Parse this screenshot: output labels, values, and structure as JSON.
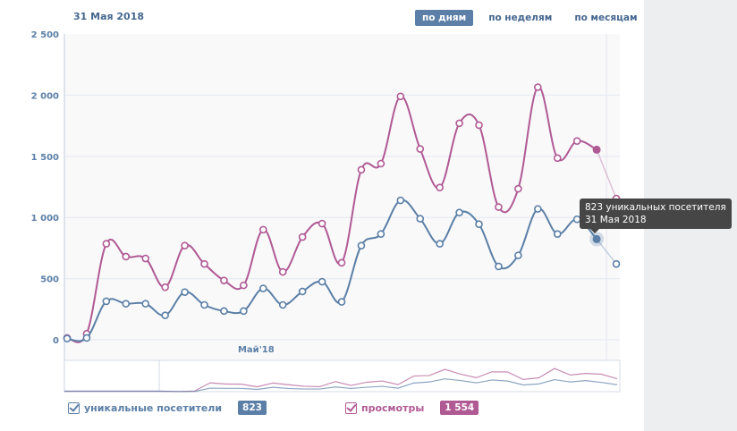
{
  "header": {
    "date_title": "31 Мая 2018"
  },
  "period_tabs": [
    {
      "label": "по дням",
      "active": true
    },
    {
      "label": "по неделям",
      "active": false
    },
    {
      "label": "по месяцам",
      "active": false
    }
  ],
  "colors": {
    "visitors": "#5b7fa6",
    "views": "#b05a94",
    "text": "#45678f",
    "grid": "#e3e8f0",
    "plot_bg": "#f9f9fa"
  },
  "chart_data": {
    "type": "line",
    "title": "31 Мая 2018",
    "xlabel": "",
    "ylabel": "",
    "ylim": [
      0,
      2500
    ],
    "yticks": [
      0,
      500,
      1000,
      1500,
      2000,
      2500
    ],
    "ytick_labels": [
      "0",
      "500",
      "1 000",
      "1 500",
      "2 000",
      "2 500"
    ],
    "xtick_labels": [
      {
        "index": 9.5,
        "label": "Май'18"
      }
    ],
    "grid": true,
    "highlight_index": 27,
    "series": [
      {
        "name": "просмотры",
        "color": "#b05a94",
        "values": [
          15,
          50,
          785,
          680,
          665,
          430,
          770,
          620,
          485,
          445,
          900,
          555,
          840,
          950,
          630,
          1390,
          1440,
          1990,
          1560,
          1245,
          1770,
          1755,
          1085,
          1235,
          2065,
          1485,
          1625,
          1554,
          1155
        ]
      },
      {
        "name": "уникальные посетители",
        "color": "#5b7fa6",
        "values": [
          10,
          15,
          315,
          295,
          295,
          200,
          390,
          285,
          235,
          235,
          420,
          285,
          395,
          475,
          310,
          770,
          865,
          1140,
          990,
          785,
          1040,
          945,
          600,
          690,
          1070,
          865,
          985,
          823,
          620
        ]
      }
    ],
    "legend": "bottom-left"
  },
  "legend": {
    "visitors": {
      "label": "уникальные посетители",
      "value": "823"
    },
    "views": {
      "label": "просмотры",
      "value": "1 554"
    }
  },
  "tooltip": {
    "line1": "823 уникальных посетителя",
    "line2": "31 Мая 2018"
  }
}
